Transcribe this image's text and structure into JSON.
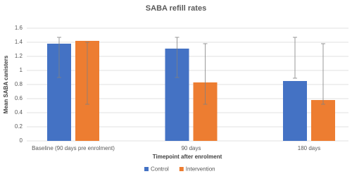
{
  "chart_data": {
    "type": "bar",
    "title": "SABA refill rates",
    "x_label": "Timepoint after enrolment",
    "y_label": "Mean SABA canisters",
    "categories": [
      "Baseline (90 days pre enrolment)",
      "90 days",
      "180 days"
    ],
    "series": [
      {
        "name": "Control",
        "color": "#4472c4",
        "values": [
          1.38,
          1.31,
          0.85
        ],
        "error_low": [
          0.9,
          0.9,
          0.89
        ],
        "error_high": [
          1.47,
          1.47,
          1.47
        ]
      },
      {
        "name": "Intervention",
        "color": "#ed7d31",
        "values": [
          1.42,
          0.83,
          0.58
        ],
        "error_low": [
          0.52,
          0.52,
          0.52
        ],
        "error_high": [
          1.4,
          1.38,
          1.38
        ]
      }
    ],
    "ylim": [
      0,
      1.6
    ],
    "yticks": [
      0,
      0.2,
      0.4,
      0.6,
      0.8,
      1,
      1.2,
      1.4,
      1.6
    ],
    "grid": true,
    "legend": "bottom"
  }
}
